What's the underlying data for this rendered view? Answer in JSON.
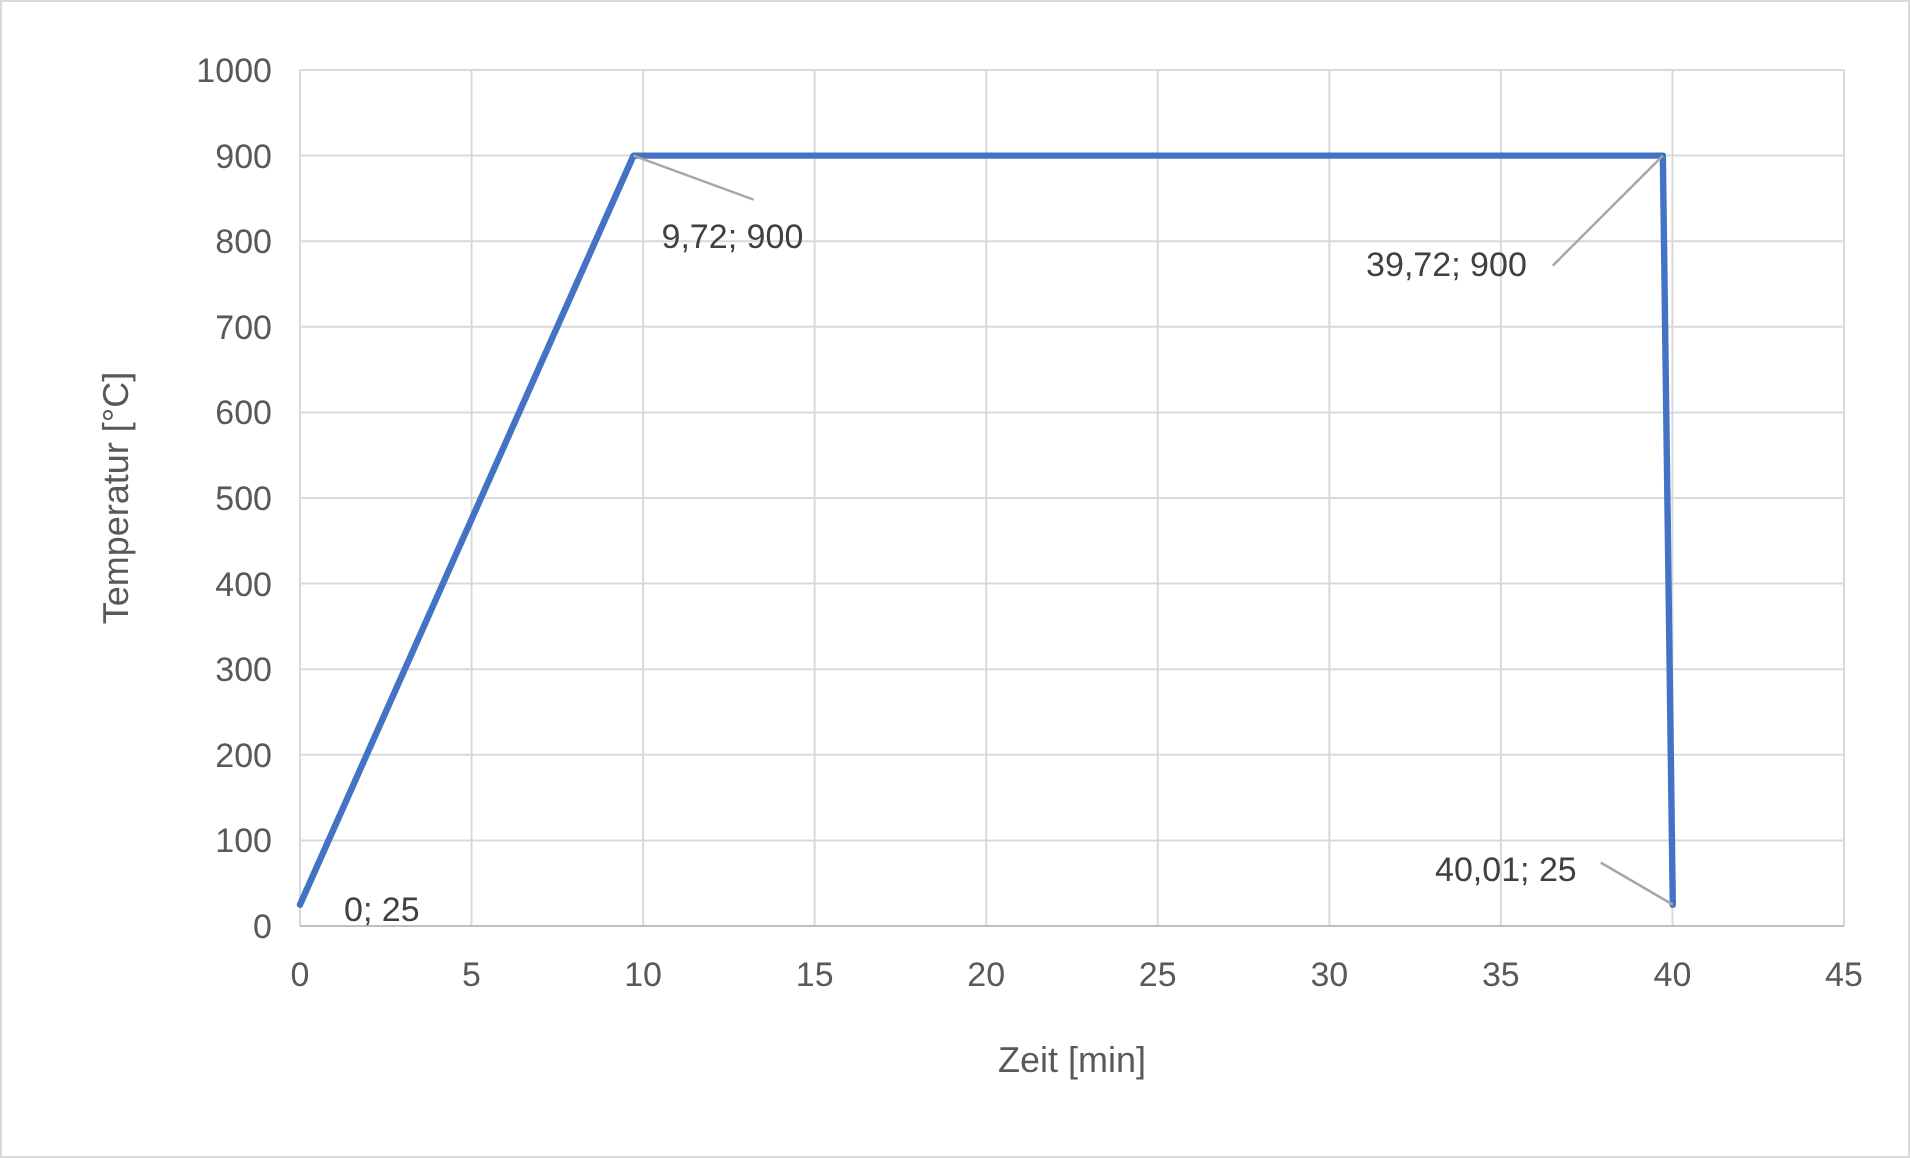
{
  "chart_data": {
    "type": "line",
    "xlabel": "Zeit [min]",
    "ylabel": "Temperatur [°C]",
    "xlim": [
      0,
      45
    ],
    "xticks": [
      0,
      5,
      10,
      15,
      20,
      25,
      30,
      35,
      40,
      45
    ],
    "ylim": [
      0,
      1000
    ],
    "yticks": [
      0,
      100,
      200,
      300,
      400,
      500,
      600,
      700,
      800,
      900,
      1000
    ],
    "grid": true,
    "marker": "none",
    "line_style": "solid",
    "series": [
      {
        "color": "#4472c4",
        "x": [
          0,
          9.72,
          39.72,
          40.01
        ],
        "values": [
          25,
          900,
          900,
          25
        ],
        "value_labels": [
          "0; 25",
          "9,72; 900",
          "39,72; 900",
          "40,01; 25"
        ]
      }
    ]
  }
}
